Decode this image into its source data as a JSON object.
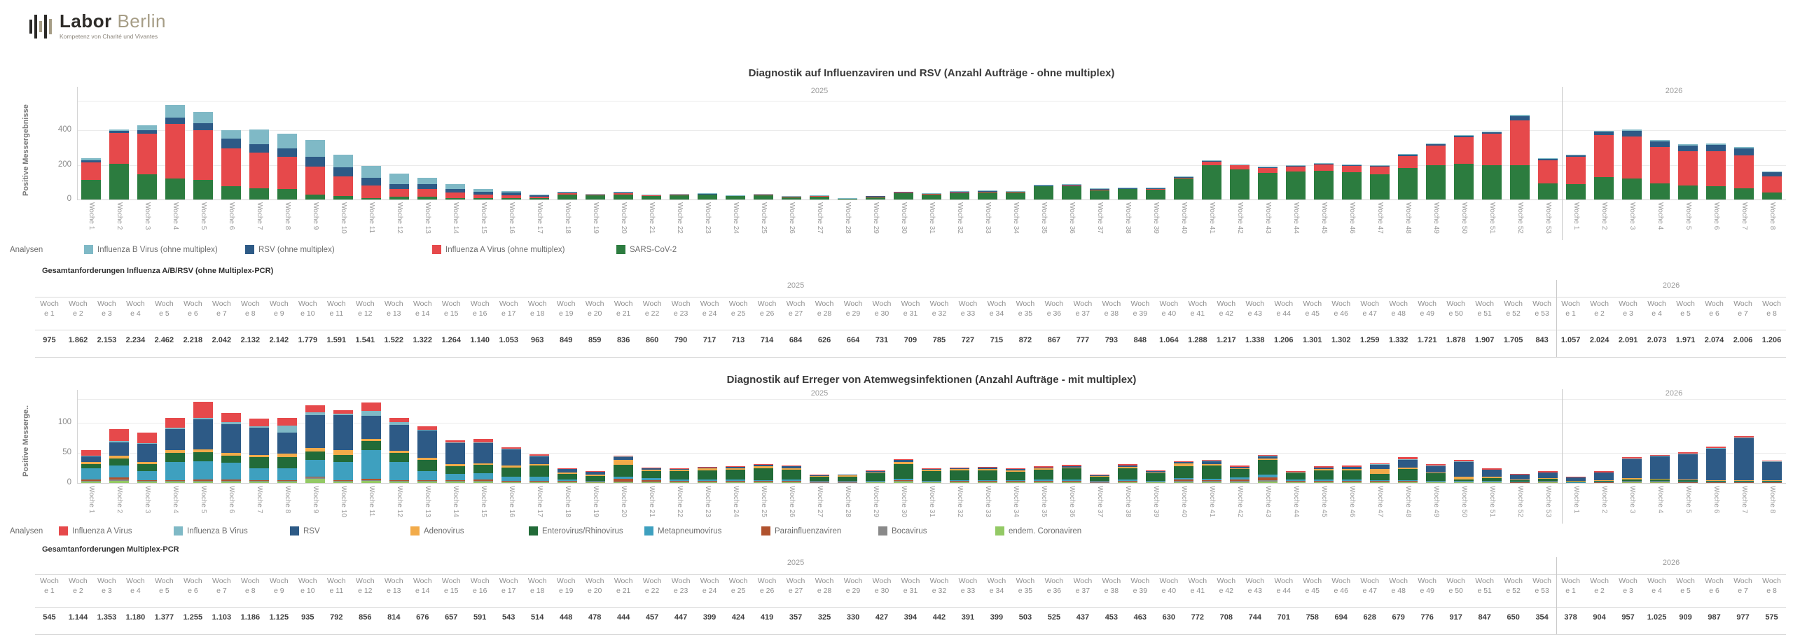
{
  "logo": {
    "brand_primary": "Labor",
    "brand_secondary": "Berlin",
    "tagline": "Kompetenz von Charité und Vivantes"
  },
  "years": {
    "y2025": "2025",
    "y2026": "2026"
  },
  "weeks_2025": [
    "Woche 1",
    "Woche 2",
    "Woche 3",
    "Woche 4",
    "Woche 5",
    "Woche 6",
    "Woche 7",
    "Woche 8",
    "Woche 9",
    "Woche 10",
    "Woche 11",
    "Woche 12",
    "Woche 13",
    "Woche 14",
    "Woche 15",
    "Woche 16",
    "Woche 17",
    "Woche 18",
    "Woche 19",
    "Woche 20",
    "Woche 21",
    "Woche 22",
    "Woche 23",
    "Woche 24",
    "Woche 25",
    "Woche 26",
    "Woche 27",
    "Woche 28",
    "Woche 29",
    "Woche 30",
    "Woche 31",
    "Woche 32",
    "Woche 33",
    "Woche 34",
    "Woche 35",
    "Woche 36",
    "Woche 37",
    "Woche 38",
    "Woche 39",
    "Woche 40",
    "Woche 41",
    "Woche 42",
    "Woche 43",
    "Woche 44",
    "Woche 45",
    "Woche 46",
    "Woche 47",
    "Woche 48",
    "Woche 49",
    "Woche 50",
    "Woche 51",
    "Woche 52",
    "Woche 53"
  ],
  "weeks_2026": [
    "Woche 1",
    "Woche 2",
    "Woche 3",
    "Woche 4",
    "Woche 5",
    "Woche 6",
    "Woche 7",
    "Woche 8"
  ],
  "chart_data": [
    {
      "type": "bar",
      "stacked": true,
      "title": "Diagnostik auf Influenzaviren und RSV (Anzahl Aufträge - ohne multiplex)",
      "ylabel": "Positive Messergebnisse",
      "xlabel": "",
      "yticks": [
        0,
        200,
        400
      ],
      "ylim": [
        0,
        570
      ],
      "grid": true,
      "legend_position": "bottom",
      "analyses_label": "Analysen",
      "x_groups": [
        {
          "year": "2025",
          "weeks": 53
        },
        {
          "year": "2026",
          "weeks": 8
        }
      ],
      "legend": [
        {
          "label": "Influenza B Virus (ohne multiplex)",
          "color": "#7FB9C6"
        },
        {
          "label": "RSV (ohne multiplex)",
          "color": "#2D5A86"
        },
        {
          "label": "Influenza A Virus (ohne multiplex)",
          "color": "#E6494B"
        },
        {
          "label": "SARS-CoV-2",
          "color": "#2C7C3F"
        }
      ],
      "series": [
        {
          "name": "SARS-CoV-2",
          "color": "#2C7C3F",
          "values": [
            115,
            205,
            145,
            120,
            115,
            75,
            65,
            60,
            30,
            20,
            10,
            15,
            15,
            10,
            10,
            10,
            8,
            30,
            25,
            30,
            22,
            25,
            28,
            20,
            26,
            15,
            18,
            5,
            14,
            36,
            28,
            38,
            42,
            40,
            75,
            78,
            55,
            60,
            58,
            120,
            200,
            175,
            155,
            160,
            165,
            158,
            145,
            180,
            200,
            205,
            200,
            200,
            95,
            90,
            130,
            120,
            95,
            80,
            75,
            65,
            40
          ]
        },
        {
          "name": "Influenza A Virus (ohne multiplex)",
          "color": "#E6494B",
          "values": [
            100,
            180,
            235,
            315,
            285,
            220,
            205,
            185,
            160,
            115,
            70,
            45,
            45,
            30,
            20,
            15,
            8,
            5,
            4,
            5,
            3,
            3,
            3,
            2,
            4,
            3,
            3,
            1,
            3,
            5,
            4,
            4,
            4,
            5,
            4,
            3,
            3,
            3,
            5,
            8,
            20,
            22,
            28,
            32,
            38,
            38,
            45,
            70,
            110,
            155,
            180,
            255,
            130,
            155,
            240,
            245,
            210,
            200,
            205,
            190,
            95
          ]
        },
        {
          "name": "RSV (ohne multiplex)",
          "color": "#2D5A86",
          "values": [
            10,
            10,
            20,
            40,
            40,
            55,
            50,
            50,
            55,
            50,
            45,
            30,
            30,
            20,
            15,
            15,
            8,
            5,
            2,
            8,
            2,
            2,
            2,
            1,
            1,
            1,
            1,
            0,
            1,
            1,
            1,
            2,
            3,
            1,
            2,
            4,
            2,
            3,
            1,
            2,
            3,
            3,
            3,
            4,
            4,
            4,
            5,
            8,
            8,
            10,
            10,
            28,
            10,
            12,
            22,
            30,
            30,
            32,
            35,
            40,
            22
          ]
        },
        {
          "name": "Influenza B Virus (ohne multiplex)",
          "color": "#7FB9C6",
          "values": [
            15,
            10,
            30,
            70,
            65,
            50,
            85,
            85,
            100,
            75,
            70,
            60,
            35,
            30,
            15,
            8,
            4,
            3,
            2,
            2,
            3,
            3,
            2,
            2,
            1,
            1,
            1,
            1,
            0,
            0,
            1,
            1,
            1,
            1,
            1,
            1,
            1,
            1,
            1,
            2,
            2,
            2,
            2,
            2,
            2,
            2,
            3,
            3,
            4,
            4,
            4,
            5,
            3,
            3,
            5,
            8,
            8,
            8,
            8,
            8,
            5
          ]
        }
      ]
    },
    {
      "type": "bar",
      "stacked": true,
      "title": "Diagnostik auf Erreger von Atemwegsinfektionen (Anzahl Aufträge - mit multiplex)",
      "ylabel": "Positive Messerge..",
      "xlabel": "",
      "yticks": [
        0,
        50,
        100
      ],
      "ylim": [
        0,
        140
      ],
      "grid": true,
      "legend_position": "bottom",
      "analyses_label": "Analysen",
      "x_groups": [
        {
          "year": "2025",
          "weeks": 53
        },
        {
          "year": "2026",
          "weeks": 8
        }
      ],
      "legend": [
        {
          "label": "Influenza A Virus",
          "color": "#E6494B"
        },
        {
          "label": "Influenza B Virus",
          "color": "#7FB9C6"
        },
        {
          "label": "RSV",
          "color": "#2D5A86"
        },
        {
          "label": "Adenovirus",
          "color": "#F2AB4A"
        },
        {
          "label": "Enterovirus/Rhinovirus",
          "color": "#226B38"
        },
        {
          "label": "Metapneumovirus",
          "color": "#3EA0BF"
        },
        {
          "label": "Parainfluenzaviren",
          "color": "#B0522E"
        },
        {
          "label": "Bocavirus",
          "color": "#898989"
        },
        {
          "label": "endem. Coronaviren",
          "color": "#93C965"
        }
      ],
      "series": [
        {
          "name": "endem. Coronaviren",
          "color": "#93C965",
          "values": [
            3,
            4,
            2,
            2,
            3,
            2,
            2,
            2,
            7,
            2,
            3,
            2,
            2,
            2,
            3,
            1,
            1,
            1,
            1,
            1,
            1,
            1,
            1,
            1,
            1,
            1,
            0,
            0,
            1,
            2,
            1,
            1,
            1,
            1,
            1,
            1,
            0,
            1,
            1,
            1,
            1,
            1,
            2,
            1,
            1,
            1,
            1,
            1,
            1,
            1,
            1,
            0,
            1,
            0,
            0,
            1,
            1,
            0,
            0,
            0,
            0
          ]
        },
        {
          "name": "Bocavirus",
          "color": "#898989",
          "values": [
            1,
            2,
            1,
            1,
            1,
            1,
            1,
            1,
            2,
            1,
            2,
            1,
            1,
            1,
            1,
            1,
            1,
            1,
            0,
            1,
            1,
            1,
            1,
            1,
            1,
            1,
            1,
            1,
            1,
            1,
            1,
            1,
            1,
            1,
            1,
            1,
            1,
            1,
            1,
            2,
            2,
            2,
            3,
            1,
            1,
            1,
            1,
            1,
            1,
            1,
            1,
            0,
            0,
            0,
            0,
            0,
            0,
            0,
            0,
            0,
            0
          ]
        },
        {
          "name": "Parainfluenzaviren",
          "color": "#B0522E",
          "values": [
            2,
            3,
            2,
            2,
            2,
            3,
            2,
            2,
            1,
            2,
            2,
            2,
            2,
            2,
            2,
            2,
            1,
            1,
            1,
            5,
            3,
            2,
            2,
            2,
            2,
            2,
            1,
            1,
            1,
            2,
            1,
            2,
            2,
            2,
            2,
            2,
            1,
            2,
            1,
            3,
            2,
            3,
            4,
            2,
            2,
            2,
            1,
            1,
            1,
            1,
            1,
            1,
            1,
            0,
            1,
            1,
            1,
            1,
            1,
            1,
            1
          ]
        },
        {
          "name": "Metapneumovirus",
          "color": "#3EA0BF",
          "values": [
            18,
            20,
            15,
            30,
            30,
            28,
            20,
            20,
            28,
            30,
            48,
            30,
            15,
            10,
            10,
            6,
            8,
            3,
            2,
            3,
            3,
            2,
            2,
            2,
            1,
            2,
            1,
            1,
            1,
            2,
            1,
            1,
            1,
            1,
            2,
            2,
            1,
            2,
            1,
            2,
            2,
            3,
            5,
            2,
            2,
            2,
            2,
            2,
            1,
            1,
            1,
            1,
            1,
            1,
            1,
            1,
            1,
            1,
            1,
            1,
            1
          ]
        },
        {
          "name": "Enterovirus/Rhinovirus",
          "color": "#226B38",
          "values": [
            7,
            12,
            12,
            15,
            15,
            12,
            18,
            18,
            15,
            12,
            15,
            15,
            18,
            13,
            14,
            16,
            18,
            9,
            8,
            20,
            12,
            14,
            15,
            16,
            20,
            16,
            8,
            8,
            12,
            25,
            16,
            16,
            16,
            14,
            16,
            18,
            8,
            18,
            12,
            20,
            22,
            14,
            25,
            10,
            15,
            15,
            10,
            18,
            12,
            2,
            4,
            3,
            4,
            2,
            2,
            3,
            3,
            3,
            2,
            2,
            2
          ]
        },
        {
          "name": "Adenovirus",
          "color": "#F2AB4A",
          "values": [
            4,
            5,
            3,
            5,
            5,
            4,
            4,
            6,
            5,
            8,
            4,
            4,
            4,
            3,
            3,
            3,
            2,
            2,
            2,
            8,
            2,
            2,
            3,
            2,
            3,
            3,
            1,
            2,
            2,
            3,
            2,
            2,
            2,
            2,
            2,
            2,
            1,
            3,
            2,
            5,
            3,
            2,
            2,
            1,
            2,
            2,
            8,
            3,
            2,
            4,
            2,
            1,
            1,
            1,
            1,
            2,
            1,
            1,
            1,
            1,
            1
          ]
        },
        {
          "name": "RSV",
          "color": "#2D5A86",
          "values": [
            9,
            22,
            30,
            35,
            50,
            48,
            45,
            35,
            55,
            58,
            38,
            43,
            45,
            35,
            33,
            27,
            14,
            6,
            5,
            5,
            3,
            2,
            2,
            3,
            3,
            3,
            1,
            1,
            2,
            3,
            2,
            2,
            3,
            2,
            2,
            2,
            1,
            2,
            2,
            2,
            4,
            2,
            3,
            2,
            3,
            4,
            7,
            12,
            10,
            25,
            12,
            8,
            10,
            6,
            12,
            32,
            38,
            42,
            52,
            70,
            30
          ]
        },
        {
          "name": "Influenza B Virus",
          "color": "#7FB9C6",
          "values": [
            1,
            2,
            2,
            2,
            2,
            4,
            3,
            12,
            5,
            3,
            8,
            4,
            2,
            2,
            2,
            1,
            1,
            1,
            0,
            1,
            0,
            0,
            0,
            0,
            0,
            0,
            0,
            0,
            0,
            0,
            0,
            0,
            0,
            0,
            0,
            0,
            0,
            0,
            0,
            0,
            1,
            0,
            1,
            0,
            0,
            0,
            1,
            2,
            1,
            1,
            0,
            0,
            0,
            0,
            0,
            1,
            1,
            1,
            1,
            1,
            1
          ]
        },
        {
          "name": "Influenza A Virus",
          "color": "#E6494B",
          "values": [
            10,
            20,
            17,
            17,
            27,
            15,
            12,
            13,
            12,
            5,
            14,
            8,
            5,
            3,
            5,
            2,
            2,
            1,
            1,
            2,
            1,
            1,
            1,
            1,
            1,
            1,
            1,
            0,
            1,
            2,
            1,
            1,
            1,
            1,
            2,
            2,
            1,
            2,
            1,
            1,
            1,
            2,
            2,
            1,
            2,
            2,
            2,
            3,
            2,
            2,
            2,
            1,
            2,
            1,
            3,
            2,
            1,
            2,
            3,
            2,
            1
          ]
        }
      ]
    }
  ],
  "tables": [
    {
      "title": "Gesamtanforderungen Influenza A/B/RSV (ohne Multiplex-PCR)",
      "values_2025": [
        "975",
        "1.862",
        "2.153",
        "2.234",
        "2.462",
        "2.218",
        "2.042",
        "2.132",
        "2.142",
        "1.779",
        "1.591",
        "1.541",
        "1.522",
        "1.322",
        "1.264",
        "1.140",
        "1.053",
        "963",
        "849",
        "859",
        "836",
        "860",
        "790",
        "717",
        "713",
        "714",
        "684",
        "626",
        "664",
        "731",
        "709",
        "785",
        "727",
        "715",
        "872",
        "867",
        "777",
        "793",
        "848",
        "1.064",
        "1.288",
        "1.217",
        "1.338",
        "1.206",
        "1.301",
        "1.302",
        "1.259",
        "1.332",
        "1.721",
        "1.878",
        "1.907",
        "1.705",
        "843"
      ],
      "values_2026": [
        "1.057",
        "2.024",
        "2.091",
        "2.073",
        "1.971",
        "2.074",
        "2.006",
        "1.206"
      ]
    },
    {
      "title": "Gesamtanforderungen Multiplex-PCR",
      "values_2025": [
        "545",
        "1.144",
        "1.353",
        "1.180",
        "1.377",
        "1.255",
        "1.103",
        "1.186",
        "1.125",
        "935",
        "792",
        "856",
        "814",
        "676",
        "657",
        "591",
        "543",
        "514",
        "448",
        "478",
        "444",
        "457",
        "447",
        "399",
        "424",
        "419",
        "357",
        "325",
        "330",
        "427",
        "394",
        "442",
        "391",
        "399",
        "503",
        "525",
        "437",
        "453",
        "463",
        "630",
        "772",
        "708",
        "744",
        "701",
        "758",
        "694",
        "628",
        "679",
        "776",
        "917",
        "847",
        "650",
        "354"
      ],
      "values_2026": [
        "378",
        "904",
        "957",
        "1.025",
        "909",
        "987",
        "977",
        "575"
      ]
    }
  ]
}
